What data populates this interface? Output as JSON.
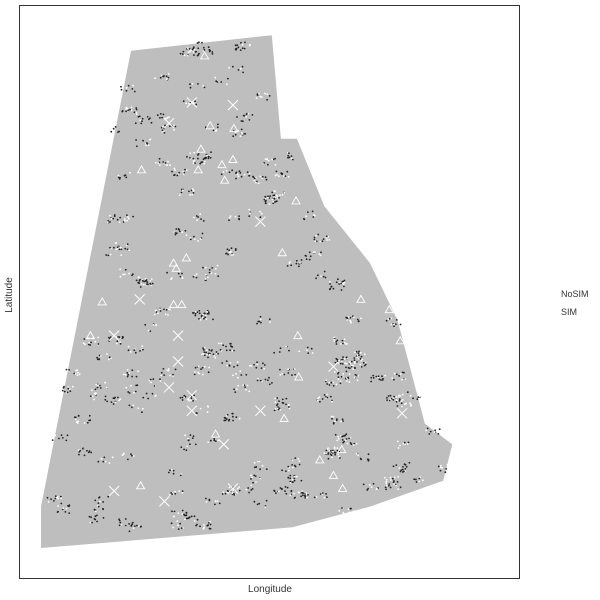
{
  "chart_data": {
    "type": "scatter",
    "title": "",
    "xlabel": "Longitude",
    "ylabel": "Latitude",
    "grid": false,
    "legend_placement": "right",
    "legend": [
      {
        "name": "NoSIM",
        "marker": "none"
      },
      {
        "name": "SIM",
        "marker": "none"
      }
    ],
    "region": {
      "fill": "#bebebe",
      "outline": [
        [
          0.197,
          0.96
        ],
        [
          0.505,
          0.99
        ],
        [
          0.525,
          0.79
        ],
        [
          0.56,
          0.79
        ],
        [
          0.62,
          0.66
        ],
        [
          0.72,
          0.55
        ],
        [
          0.78,
          0.44
        ],
        [
          0.84,
          0.24
        ],
        [
          0.9,
          0.2
        ],
        [
          0.88,
          0.13
        ],
        [
          0.72,
          0.08
        ],
        [
          0.55,
          0.04
        ],
        [
          0.0,
          0.0
        ],
        [
          0.0,
          0.08
        ]
      ]
    },
    "series": [
      {
        "name": "triangles",
        "marker": "triangle",
        "color": "#ffffff",
        "points": [
          [
            0.358,
            0.95
          ],
          [
            0.422,
            0.81
          ],
          [
            0.396,
            0.74
          ],
          [
            0.344,
            0.73
          ],
          [
            0.558,
            0.67
          ],
          [
            0.528,
            0.57
          ],
          [
            0.318,
            0.56
          ],
          [
            0.29,
            0.55
          ],
          [
            0.296,
            0.54
          ],
          [
            0.308,
            0.47
          ],
          [
            0.134,
            0.475
          ],
          [
            0.562,
            0.41
          ],
          [
            0.7,
            0.48
          ],
          [
            0.762,
            0.46
          ],
          [
            0.786,
            0.4
          ],
          [
            0.532,
            0.25
          ],
          [
            0.382,
            0.22
          ],
          [
            0.218,
            0.12
          ],
          [
            0.564,
            0.33
          ],
          [
            0.61,
            0.17
          ],
          [
            0.64,
            0.14
          ],
          [
            0.658,
            0.19
          ],
          [
            0.37,
            0.815
          ],
          [
            0.35,
            0.77
          ],
          [
            0.402,
            0.71
          ],
          [
            0.22,
            0.73
          ],
          [
            0.108,
            0.41
          ],
          [
            0.66,
            0.115
          ],
          [
            0.29,
            0.47
          ],
          [
            0.42,
            0.75
          ]
        ]
      },
      {
        "name": "crosses",
        "marker": "x",
        "color": "#ffffff",
        "points": [
          [
            0.33,
            0.86
          ],
          [
            0.42,
            0.855
          ],
          [
            0.28,
            0.82
          ],
          [
            0.48,
            0.63
          ],
          [
            0.216,
            0.48
          ],
          [
            0.16,
            0.41
          ],
          [
            0.3,
            0.41
          ],
          [
            0.64,
            0.35
          ],
          [
            0.33,
            0.295
          ],
          [
            0.33,
            0.265
          ],
          [
            0.48,
            0.265
          ],
          [
            0.79,
            0.26
          ],
          [
            0.4,
            0.2
          ],
          [
            0.42,
            0.115
          ],
          [
            0.27,
            0.09
          ],
          [
            0.16,
            0.11
          ],
          [
            0.28,
            0.31
          ],
          [
            0.3,
            0.36
          ]
        ]
      }
    ]
  }
}
